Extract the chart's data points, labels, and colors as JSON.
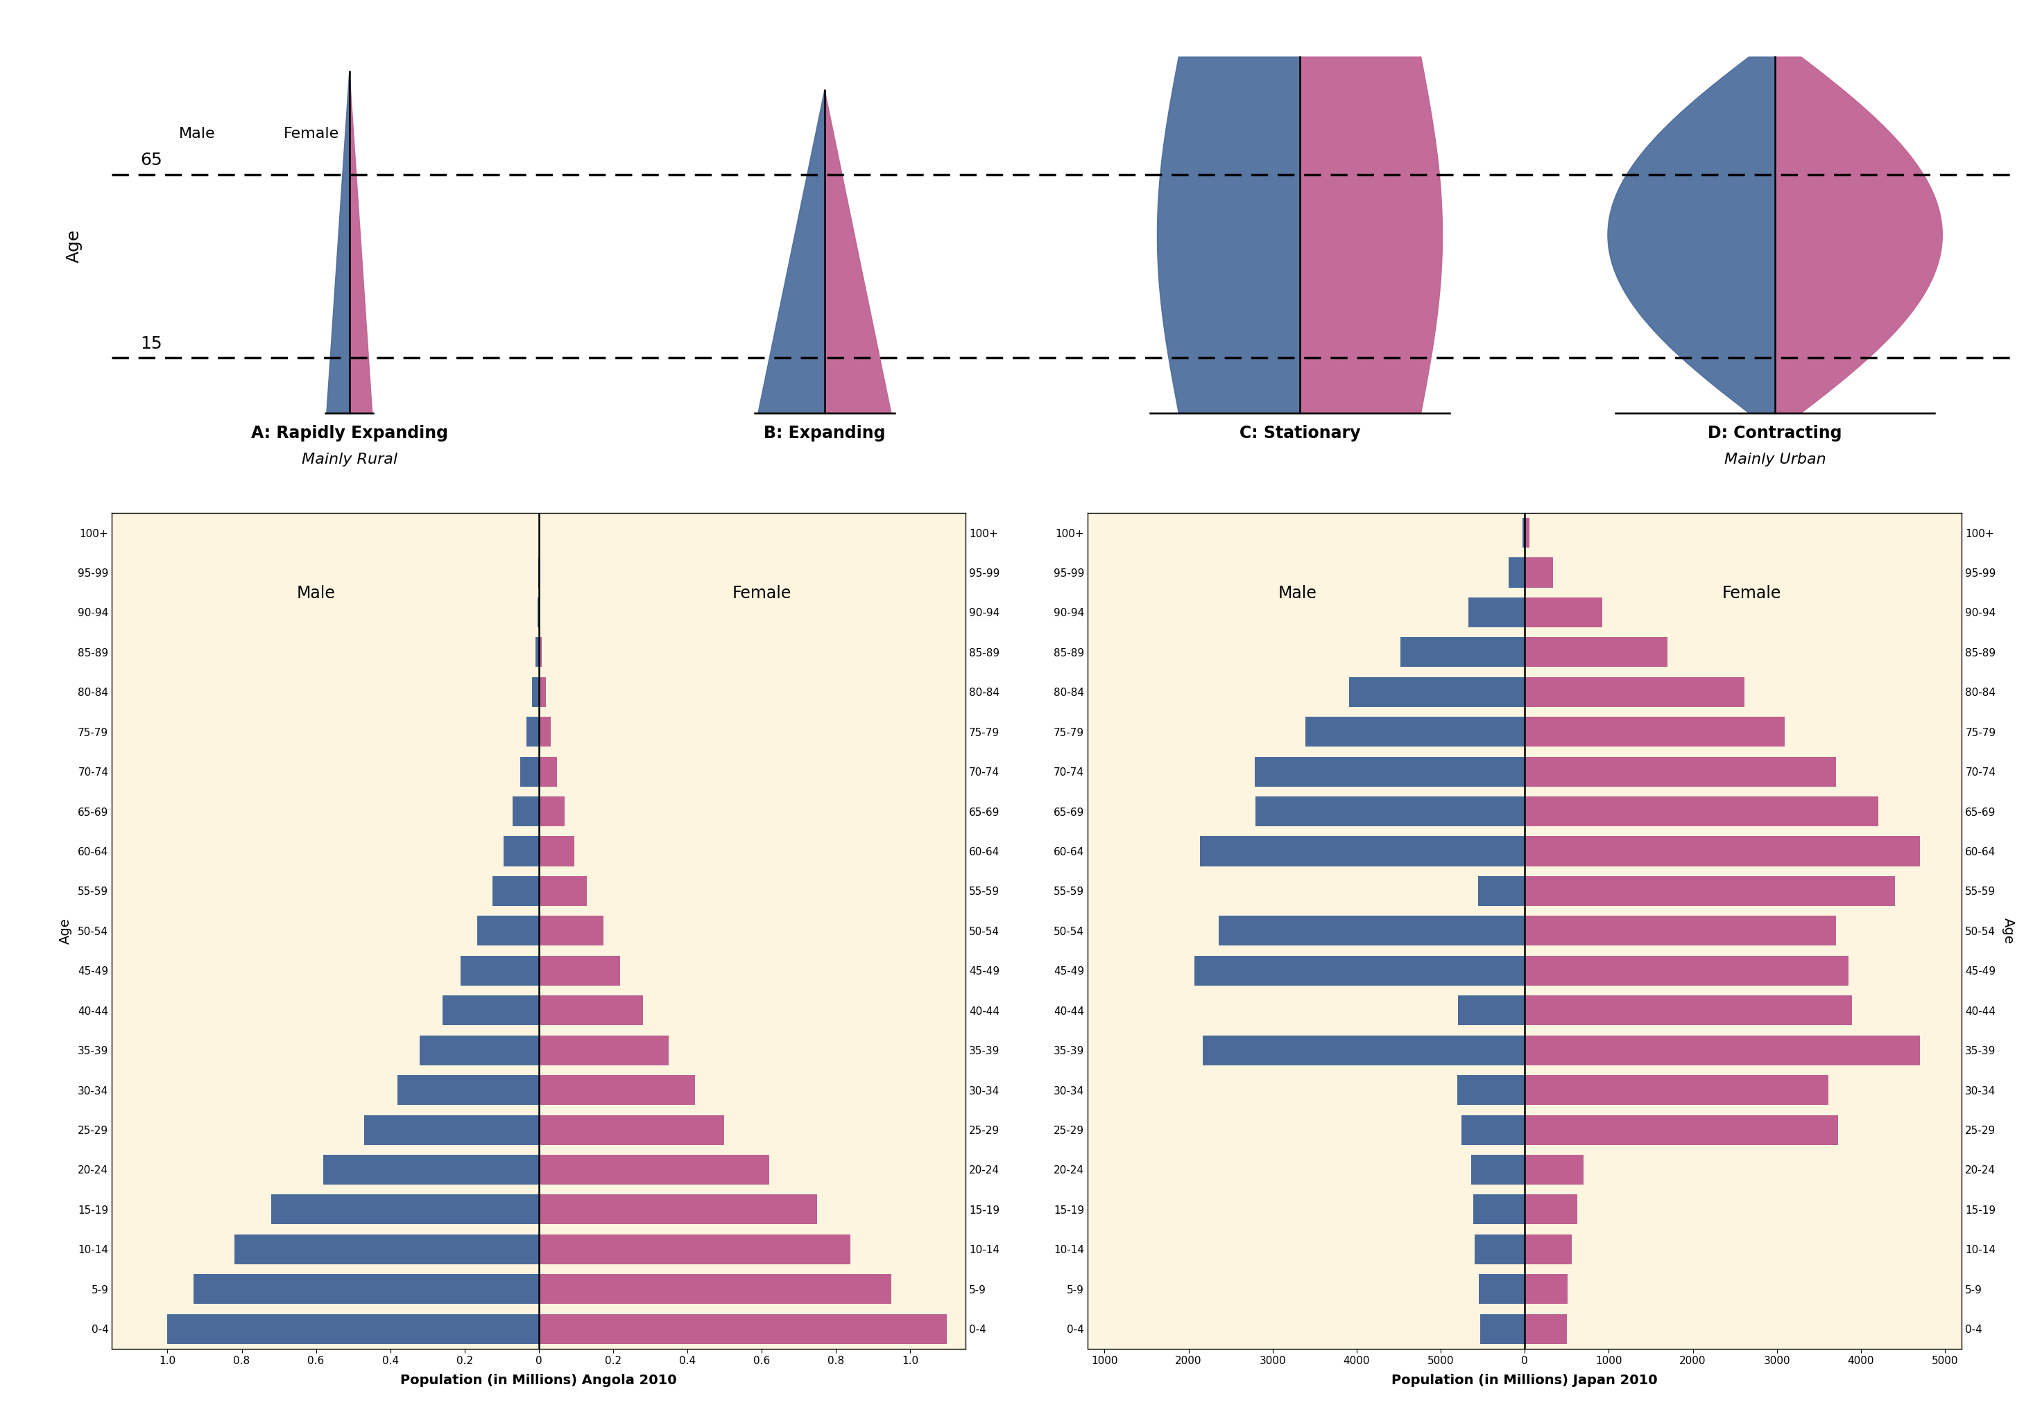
{
  "age_labels": [
    "0-4",
    "5-9",
    "10-14",
    "15-19",
    "20-24",
    "25-29",
    "30-34",
    "35-39",
    "40-44",
    "45-49",
    "50-54",
    "55-59",
    "60-64",
    "65-69",
    "70-74",
    "75-79",
    "80-84",
    "85-89",
    "90-94",
    "95-99",
    "100+"
  ],
  "angola_male": [
    1.0,
    0.93,
    0.82,
    0.72,
    0.58,
    0.47,
    0.38,
    0.32,
    0.26,
    0.21,
    0.165,
    0.125,
    0.095,
    0.07,
    0.05,
    0.033,
    0.019,
    0.008,
    0.003,
    0.001,
    0.0003
  ],
  "angola_female": [
    1.1,
    0.95,
    0.84,
    0.75,
    0.62,
    0.5,
    0.42,
    0.35,
    0.28,
    0.22,
    0.175,
    0.13,
    0.095,
    0.07,
    0.05,
    0.033,
    0.019,
    0.008,
    0.003,
    0.001,
    0.0003
  ],
  "japan_male": [
    530,
    545,
    595,
    613,
    640,
    755,
    805,
    3830,
    795,
    3930,
    3640,
    555,
    3860,
    3200,
    3210,
    2610,
    2090,
    1480,
    670,
    190,
    25
  ],
  "japan_female": [
    503,
    513,
    563,
    622,
    700,
    3730,
    3610,
    4700,
    3895,
    3848,
    3700,
    4405,
    4700,
    4210,
    3700,
    3090,
    2610,
    1700,
    920,
    338,
    52
  ],
  "male_color": "#4a6b9a",
  "female_color": "#bf6090",
  "bg_color": "#fdf5e0",
  "top_bg": "#ffffff",
  "border_color": "#888888",
  "axis_label_fontsize": 13,
  "tick_fontsize": 11,
  "bar_height": 0.75,
  "angola_xlim": 1.15,
  "japan_xlim": 5200,
  "angola_xticks": [
    -1.0,
    -0.8,
    -0.6,
    -0.4,
    -0.2,
    0.0,
    0.2,
    0.4,
    0.6,
    0.8,
    1.0
  ],
  "angola_xticklabels": [
    "1.0",
    "0.8",
    "0.6",
    "0.4",
    "0.2",
    "0",
    "0.2",
    "0.4",
    "0.6",
    "0.8",
    "1.0"
  ],
  "japan_xticks": [
    0,
    1000,
    2000,
    3000,
    4000,
    5000
  ],
  "japan_xticklabels": [
    "0",
    "1000",
    "2000",
    "3000",
    "4000",
    "5000"
  ]
}
